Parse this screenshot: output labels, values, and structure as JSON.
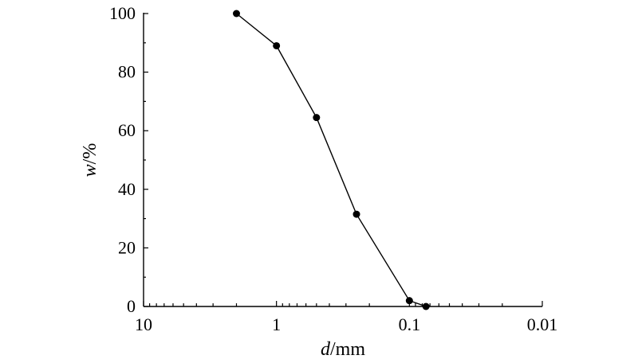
{
  "chart_data": {
    "type": "line",
    "x_scale": "log",
    "x_reversed": true,
    "xlim": [
      10,
      0.01
    ],
    "ylim": [
      0,
      100
    ],
    "x_ticks": [
      10,
      1,
      0.1,
      0.01
    ],
    "x_tick_labels": [
      "10",
      "1",
      "0.1",
      "0.01"
    ],
    "y_ticks": [
      0,
      20,
      40,
      60,
      80,
      100
    ],
    "y_tick_labels": [
      "0",
      "20",
      "40",
      "60",
      "80",
      "100"
    ],
    "xlabel": {
      "var": "d",
      "unit": "/mm"
    },
    "ylabel": {
      "var": "w",
      "unit": "/%"
    },
    "grid": false,
    "series": [
      {
        "x": [
          2,
          1,
          0.5,
          0.25,
          0.1,
          0.075
        ],
        "y": [
          100,
          89,
          64.5,
          31.5,
          2,
          0
        ]
      }
    ]
  }
}
